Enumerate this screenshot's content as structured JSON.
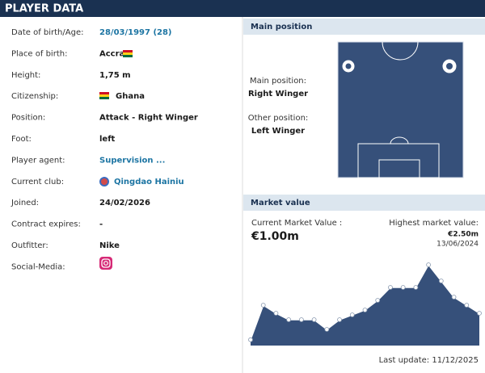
{
  "header": {
    "title": "PLAYER DATA"
  },
  "rows": [
    {
      "label": "Date of birth/Age:",
      "value": "28/03/1997 (28)"
    },
    {
      "label": "Place of birth:",
      "value": "Accra"
    },
    {
      "label": "Height:",
      "value": "1,75 m"
    },
    {
      "label": "Citizenship:",
      "value": "Ghana"
    },
    {
      "label": "Position:",
      "value": "Attack - Right Winger"
    },
    {
      "label": "Foot:",
      "value": "left"
    },
    {
      "label": "Player agent:",
      "value": "Supervision ..."
    },
    {
      "label": "Current club:",
      "value": "Qingdao Hainiu"
    },
    {
      "label": "Joined:",
      "value": "24/02/2026"
    },
    {
      "label": "Contract expires:",
      "value": "-"
    },
    {
      "label": "Outfitter:",
      "value": "Nike"
    },
    {
      "label": "Social-Media:"
    }
  ],
  "position": {
    "title": "Main position",
    "main_label": "Main position:",
    "main": "Right Winger",
    "other_label": "Other position:",
    "other": "Left Winger"
  },
  "market": {
    "title": "Market value",
    "current_label": "Current Market Value :",
    "current": "€1.00m",
    "highest_label": "Highest market value:",
    "highest": "€2.50m",
    "highest_date": "13/06/2024",
    "last_update": "Last update: 11/12/2025"
  },
  "chart_data": {
    "type": "area",
    "color": "#36507a",
    "values": [
      0.18,
      1.25,
      1.0,
      0.8,
      0.8,
      0.8,
      0.5,
      0.8,
      0.95,
      1.1,
      1.4,
      1.8,
      1.8,
      1.8,
      2.5,
      2.0,
      1.5,
      1.25,
      1.0
    ],
    "ylim": [
      0,
      2.6
    ]
  }
}
